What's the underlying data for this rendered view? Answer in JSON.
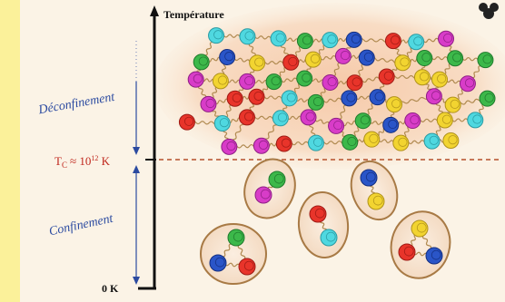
{
  "axis_label": "Température",
  "phases": {
    "upper": "Déconfinement",
    "lower": "Confinement"
  },
  "critical_temperature": {
    "symbol": "T",
    "subscript": "C",
    "middle": "≈ 10",
    "exponent": "12",
    "unit": " K"
  },
  "origin_label": "0 K"
}
